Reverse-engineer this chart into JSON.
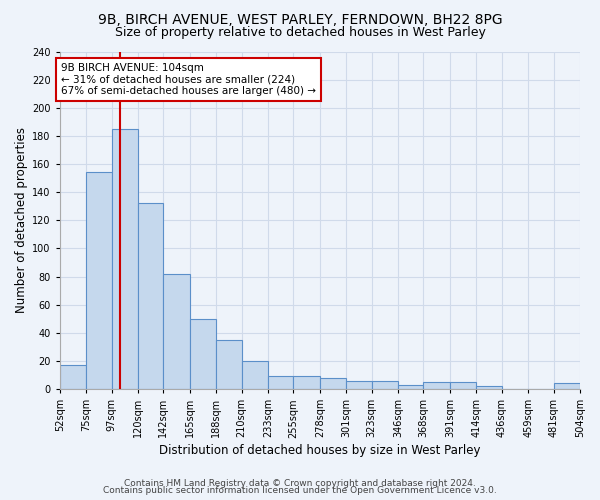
{
  "title_line1": "9B, BIRCH AVENUE, WEST PARLEY, FERNDOWN, BH22 8PG",
  "title_line2": "Size of property relative to detached houses in West Parley",
  "xlabel": "Distribution of detached houses by size in West Parley",
  "ylabel": "Number of detached properties",
  "bin_edges": [
    52,
    75,
    97,
    120,
    142,
    165,
    188,
    210,
    233,
    255,
    278,
    301,
    323,
    346,
    368,
    391,
    414,
    436,
    459,
    481,
    504
  ],
  "bar_heights": [
    17,
    154,
    185,
    132,
    82,
    50,
    35,
    20,
    9,
    9,
    8,
    6,
    6,
    3,
    5,
    5,
    2,
    0,
    0,
    4
  ],
  "tick_labels": [
    "52sqm",
    "75sqm",
    "97sqm",
    "120sqm",
    "142sqm",
    "165sqm",
    "188sqm",
    "210sqm",
    "233sqm",
    "255sqm",
    "278sqm",
    "301sqm",
    "323sqm",
    "346sqm",
    "368sqm",
    "391sqm",
    "414sqm",
    "436sqm",
    "459sqm",
    "481sqm",
    "504sqm"
  ],
  "bar_color": "#c5d8ed",
  "bar_edge_color": "#5b8fc9",
  "bg_color": "#eef3fa",
  "grid_color": "#d0daea",
  "vline_x": 104,
  "vline_color": "#cc0000",
  "annotation_text": "9B BIRCH AVENUE: 104sqm\n← 31% of detached houses are smaller (224)\n67% of semi-detached houses are larger (480) →",
  "annotation_box_color": "#ffffff",
  "annotation_box_edge": "#cc0000",
  "ylim": [
    0,
    240
  ],
  "yticks": [
    0,
    20,
    40,
    60,
    80,
    100,
    120,
    140,
    160,
    180,
    200,
    220,
    240
  ],
  "footer_line1": "Contains HM Land Registry data © Crown copyright and database right 2024.",
  "footer_line2": "Contains public sector information licensed under the Open Government Licence v3.0.",
  "title_fontsize": 10,
  "subtitle_fontsize": 9,
  "axis_label_fontsize": 8.5,
  "tick_fontsize": 7,
  "footer_fontsize": 6.5
}
